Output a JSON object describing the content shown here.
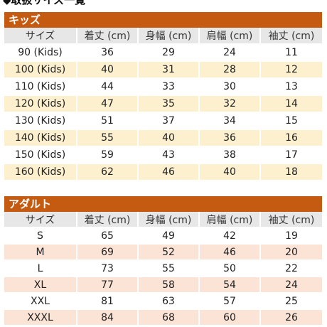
{
  "page": {
    "heading": "◆取扱サイズ一覧"
  },
  "colors": {
    "section_header_bg": "#c55a11",
    "header_row_bg": "#e7e7e7",
    "kids_alt_row_bg": "#fdf0cf",
    "adult_alt_row_bg": "#fbe3d6"
  },
  "kids": {
    "title": "キッズ",
    "headers": [
      "サイズ",
      "着丈 (cm)",
      "身幅 (cm)",
      "肩幅 (cm)",
      "袖丈 (cm)"
    ],
    "rows": [
      [
        "90 (Kids)",
        "36",
        "29",
        "24",
        "11"
      ],
      [
        "100 (Kids)",
        "40",
        "31",
        "28",
        "12"
      ],
      [
        "110 (Kids)",
        "44",
        "33",
        "30",
        "13"
      ],
      [
        "120 (Kids)",
        "47",
        "35",
        "32",
        "14"
      ],
      [
        "130 (Kids)",
        "51",
        "37",
        "34",
        "15"
      ],
      [
        "140 (Kids)",
        "55",
        "40",
        "36",
        "16"
      ],
      [
        "150 (Kids)",
        "59",
        "43",
        "38",
        "17"
      ],
      [
        "160 (Kids)",
        "62",
        "46",
        "40",
        "18"
      ]
    ]
  },
  "adult": {
    "title": "アダルト",
    "headers": [
      "サイズ",
      "着丈 (cm)",
      "身幅 (cm)",
      "肩幅 (cm)",
      "袖丈 (cm)"
    ],
    "rows": [
      [
        "S",
        "65",
        "49",
        "42",
        "19"
      ],
      [
        "M",
        "69",
        "52",
        "46",
        "20"
      ],
      [
        "L",
        "73",
        "55",
        "50",
        "22"
      ],
      [
        "XL",
        "77",
        "58",
        "54",
        "24"
      ],
      [
        "XXL",
        "81",
        "63",
        "57",
        "25"
      ],
      [
        "XXXL",
        "84",
        "68",
        "60",
        "26"
      ]
    ]
  }
}
